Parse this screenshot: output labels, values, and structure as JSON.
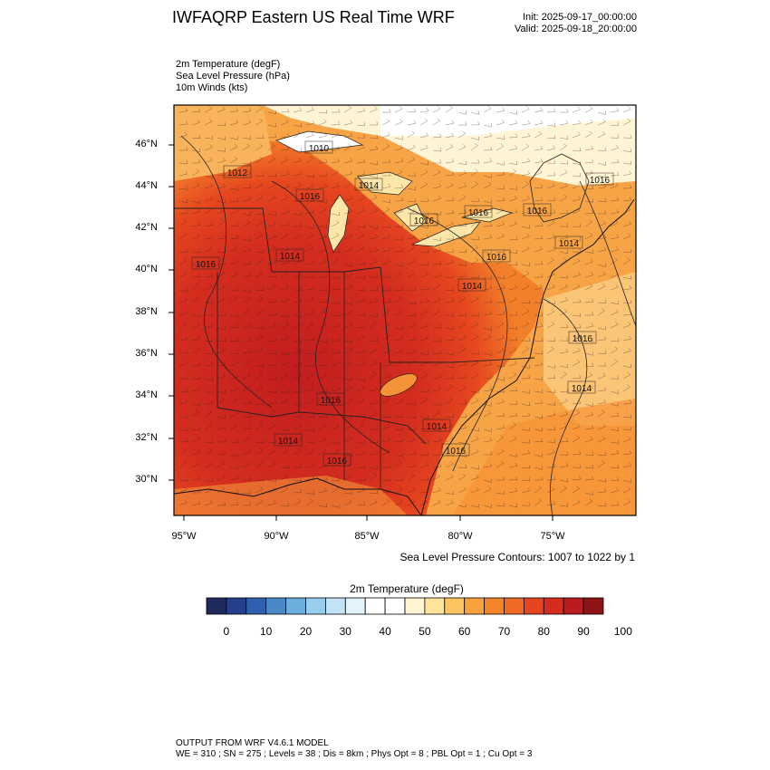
{
  "header": {
    "title": "IWFAQRP Eastern US Real Time WRF",
    "init": "Init: 2025-09-17_00:00:00",
    "valid": "Valid: 2025-09-18_20:00:00"
  },
  "fields": [
    "2m Temperature   (degF)",
    "Sea Level Pressure   (hPa)",
    "10m Winds   (kts)"
  ],
  "map": {
    "lat_labels": [
      "46°N",
      "44°N",
      "42°N",
      "40°N",
      "38°N",
      "36°N",
      "34°N",
      "32°N",
      "30°N"
    ],
    "lon_labels": [
      "95°W",
      "90°W",
      "85°W",
      "80°W",
      "75°W"
    ],
    "pressure_labels": [
      "1012",
      "1010",
      "1016",
      "1014",
      "1016",
      "1016",
      "1016",
      "1016",
      "1014",
      "1016",
      "1014",
      "1016",
      "1014",
      "1016",
      "1014",
      "1014",
      "1016",
      "1014",
      "1016",
      "1016"
    ],
    "contour_note": "Sea Level Pressure Contours: 1007 to 1022 by 1"
  },
  "colorbar": {
    "title": "2m Temperature  (degF)",
    "tick_labels": [
      "0",
      "10",
      "20",
      "30",
      "40",
      "50",
      "60",
      "70",
      "80",
      "90",
      "100"
    ],
    "colors": [
      "#1f2a5e",
      "#253f8c",
      "#2f5fae",
      "#4a88c7",
      "#6aaede",
      "#98cdee",
      "#c2e3f5",
      "#e4f2fa",
      "#ffffff",
      "#ffffff",
      "#fff5d2",
      "#ffe39a",
      "#fdc462",
      "#f9a23c",
      "#f38428",
      "#ee6a22",
      "#e6461f",
      "#d42d1f",
      "#b81c1f",
      "#8f1418"
    ]
  },
  "footer": {
    "line1": "OUTPUT FROM WRF V4.6.1 MODEL",
    "line2": "WE = 310 ; SN = 275 ; Levels = 38 ; Dis = 8km ; Phys Opt = 8 ; PBL Opt = 1 ; Cu Opt = 3"
  }
}
